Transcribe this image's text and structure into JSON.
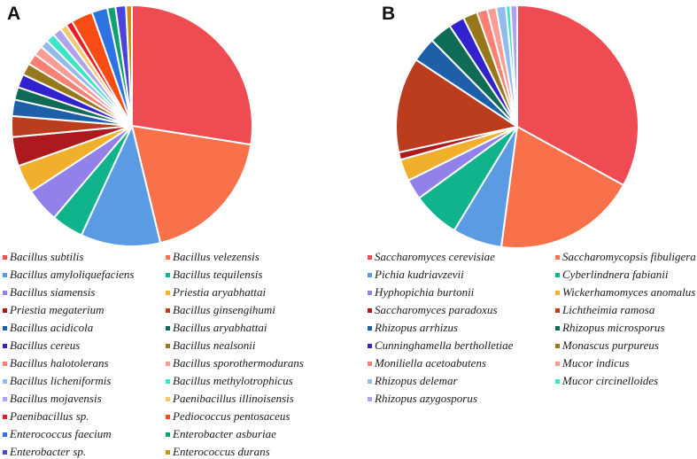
{
  "figure": {
    "background": "#ffffff",
    "panels": [
      {
        "label": "A"
      },
      {
        "label": "B"
      }
    ]
  },
  "chart_data": [
    {
      "type": "pie",
      "panel": "A",
      "title": "",
      "units": "percent",
      "start_angle_deg": 0,
      "direction": "clockwise",
      "slice_gap_color": "#ffffff",
      "legend_position": "bottom",
      "legend_columns": 2,
      "slices": [
        {
          "label": "Bacillus subtilis",
          "value": 27.5,
          "color": "#EF4B52"
        },
        {
          "label": "Bacillus velezensis",
          "value": 18.7,
          "color": "#F9714B"
        },
        {
          "label": "Bacillus amyloliquefaciens",
          "value": 10.7,
          "color": "#5B9BE3"
        },
        {
          "label": "Bacillus tequilensis",
          "value": 4.3,
          "color": "#10B38C"
        },
        {
          "label": "Bacillus siamensis",
          "value": 4.6,
          "color": "#9181E9"
        },
        {
          "label": "Priestia aryabhattai",
          "value": 3.8,
          "color": "#F0B02C"
        },
        {
          "label": "Priestia megaterium",
          "value": 3.9,
          "color": "#AC1A1E"
        },
        {
          "label": "Bacillus ginsengihumi",
          "value": 2.8,
          "color": "#BC3C1E"
        },
        {
          "label": "Bacillus acidicola",
          "value": 2.2,
          "color": "#1D5FA9"
        },
        {
          "label": "Bacillus aryabhattai",
          "value": 1.7,
          "color": "#0F6B55"
        },
        {
          "label": "Bacillus cereus",
          "value": 1.8,
          "color": "#3222CE"
        },
        {
          "label": "Bacillus nealsonii",
          "value": 1.6,
          "color": "#97771B"
        },
        {
          "label": "Bacillus halotolerans",
          "value": 1.5,
          "color": "#FA8072"
        },
        {
          "label": "Bacillus sporothermodurans",
          "value": 1.3,
          "color": "#FB9C94"
        },
        {
          "label": "Bacillus licheniformis",
          "value": 1.1,
          "color": "#93BCEC"
        },
        {
          "label": "Bacillus methylotrophicus",
          "value": 1.2,
          "color": "#3BE5C8"
        },
        {
          "label": "Bacillus mojavensis",
          "value": 1.2,
          "color": "#AFA3ED"
        },
        {
          "label": "Paenibacillus illinoisensis",
          "value": 0.9,
          "color": "#F5CA6E"
        },
        {
          "label": "Paenibacillus sp.",
          "value": 0.9,
          "color": "#EC1C24"
        },
        {
          "label": "Pediococcus pentosaceus",
          "value": 2.9,
          "color": "#F94B14"
        },
        {
          "label": "Enterococcus faecium",
          "value": 2.1,
          "color": "#2D73E2"
        },
        {
          "label": "Enterobacter asburiae",
          "value": 1.1,
          "color": "#0FA173"
        },
        {
          "label": "Enterobacter sp.",
          "value": 1.4,
          "color": "#4B44DC"
        },
        {
          "label": "Enterococcus durans",
          "value": 0.8,
          "color": "#C89417"
        }
      ]
    },
    {
      "type": "pie",
      "panel": "B",
      "title": "",
      "units": "percent",
      "start_angle_deg": 0,
      "direction": "clockwise",
      "slice_gap_color": "#ffffff",
      "legend_position": "bottom",
      "legend_columns": 2,
      "slices": [
        {
          "label": "Saccharomyces cerevisiae",
          "value": 33.0,
          "color": "#EF4B52"
        },
        {
          "label": "Saccharomycopsis fibuligera",
          "value": 19.1,
          "color": "#F9714B"
        },
        {
          "label": "Pichia kudriavzevii",
          "value": 6.6,
          "color": "#5B9BE3"
        },
        {
          "label": "Cyberlindnera fabianii",
          "value": 6.3,
          "color": "#10B38C"
        },
        {
          "label": "Hyphopichia burtonii",
          "value": 2.7,
          "color": "#9181E9"
        },
        {
          "label": "Wickerhamomyces anomalus",
          "value": 2.9,
          "color": "#F0B02C"
        },
        {
          "label": "Saccharomyces paradoxus",
          "value": 1.0,
          "color": "#AC1A1E"
        },
        {
          "label": "Lichtheimia ramosa",
          "value": 12.7,
          "color": "#BC3C1E"
        },
        {
          "label": "Rhizopus arrhizus",
          "value": 3.3,
          "color": "#1D5FA9"
        },
        {
          "label": "Rhizopus microsporus",
          "value": 3.0,
          "color": "#0F6B55"
        },
        {
          "label": "Cunninghamella bertholletiae",
          "value": 2.1,
          "color": "#3222CE"
        },
        {
          "label": "Monascus purpureus",
          "value": 1.9,
          "color": "#97771B"
        },
        {
          "label": "Moniliella acetoabutens",
          "value": 1.4,
          "color": "#FA8072"
        },
        {
          "label": "Mucor indicus",
          "value": 1.2,
          "color": "#FB9C94"
        },
        {
          "label": "Rhizopus delemar",
          "value": 1.3,
          "color": "#93BCEC"
        },
        {
          "label": "Mucor circinelloides",
          "value": 0.6,
          "color": "#3BE5C8"
        },
        {
          "label": "Rhizopus azygosporus",
          "value": 0.9,
          "color": "#AFA3ED"
        }
      ]
    }
  ]
}
